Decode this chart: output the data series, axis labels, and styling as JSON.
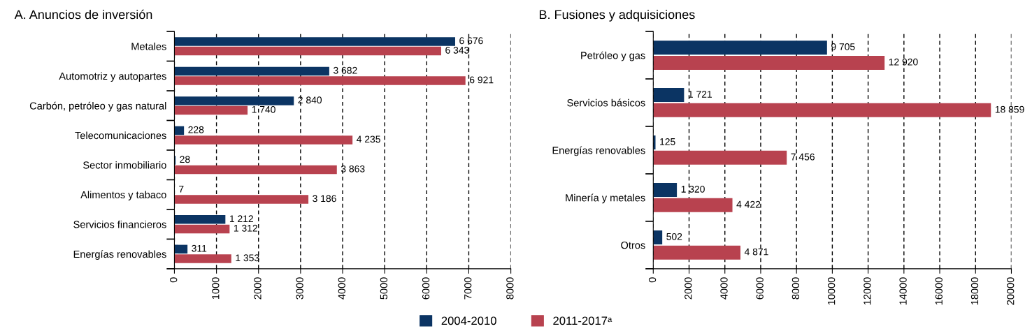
{
  "chart_data": [
    {
      "type": "bar",
      "orientation": "horizontal",
      "title": "A. Anuncios de inversión",
      "categories": [
        "Metales",
        "Automotriz y autopartes",
        "Carbón, petróleo y gas natural",
        "Telecomunicaciones",
        "Sector inmobiliario",
        "Alimentos y tabaco",
        "Servicios financieros",
        "Energías renovables"
      ],
      "series": [
        {
          "name": "2004-2010",
          "color": "#0b3463",
          "values": [
            6676,
            3682,
            2840,
            228,
            28,
            7,
            1212,
            311
          ],
          "value_labels": [
            "6 676",
            "3 682",
            "2 840",
            "228",
            "28",
            "7",
            "1 212",
            "311"
          ]
        },
        {
          "name": "2011-2017ᵃ",
          "color": "#b8424f",
          "values": [
            6343,
            6921,
            1740,
            4235,
            3863,
            3186,
            1312,
            1353
          ],
          "value_labels": [
            "6 343",
            "6 921",
            "1 740",
            "4 235",
            "3 863",
            "3 186",
            "1 312",
            "1 353"
          ]
        }
      ],
      "xlim": [
        0,
        8000
      ],
      "xticks": [
        0,
        1000,
        2000,
        3000,
        4000,
        5000,
        6000,
        7000,
        8000
      ],
      "grid": "x",
      "legend": "bottom"
    },
    {
      "type": "bar",
      "orientation": "horizontal",
      "title": "B. Fusiones y adquisiciones",
      "categories": [
        "Petróleo y gas",
        "Servicios básicos",
        "Energías renovables",
        "Minería y metales",
        "Otros"
      ],
      "series": [
        {
          "name": "2004-2010",
          "color": "#0b3463",
          "values": [
            9705,
            1721,
            125,
            1320,
            502
          ],
          "value_labels": [
            "9 705",
            "1 721",
            "125",
            "1 320",
            "502"
          ]
        },
        {
          "name": "2011-2017ᵃ",
          "color": "#b8424f",
          "values": [
            12920,
            18859,
            7456,
            4422,
            4871
          ],
          "value_labels": [
            "12 920",
            "18 859",
            "7 456",
            "4 422",
            "4 871"
          ]
        }
      ],
      "xlim": [
        0,
        20000
      ],
      "xticks": [
        0,
        2000,
        4000,
        6000,
        8000,
        10000,
        12000,
        14000,
        16000,
        18000,
        20000
      ],
      "grid": "x",
      "legend": "bottom"
    }
  ]
}
